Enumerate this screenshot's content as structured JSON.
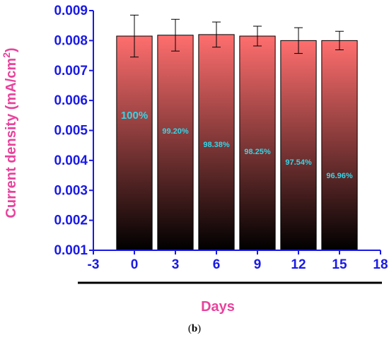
{
  "chart_data": {
    "type": "bar",
    "x": [
      0,
      3,
      6,
      9,
      12,
      15
    ],
    "values": [
      0.00815,
      0.00818,
      0.0082,
      0.00815,
      0.008,
      0.008
    ],
    "errors": [
      0.0007,
      0.00053,
      0.00042,
      0.00033,
      0.00043,
      0.00031
    ],
    "bar_labels": [
      "100%",
      "99.20%",
      "98.38%",
      "98.25%",
      "97.54%",
      "96.96%"
    ],
    "xlabel": "Days",
    "ylabel_main": "Current density (mA/cm",
    "ylabel_sup": "2",
    "ylabel_end": ")",
    "xlim": [
      -3,
      18
    ],
    "ylim": [
      0.001,
      0.009
    ],
    "xticks": [
      "-3",
      "0",
      "3",
      "6",
      "9",
      "12",
      "15",
      "18"
    ],
    "yticks": [
      "0.001",
      "0.002",
      "0.003",
      "0.004",
      "0.005",
      "0.006",
      "0.007",
      "0.008",
      "0.009"
    ],
    "grid": false,
    "colors": {
      "axis": "#1a1ae6",
      "label": "#e8439c",
      "bar_top": "#ff6e6e",
      "bar_bottom": "#000000",
      "bar_text": "#33d6e8"
    }
  },
  "caption": {
    "open": "(",
    "letter": "b",
    "close": ")"
  }
}
